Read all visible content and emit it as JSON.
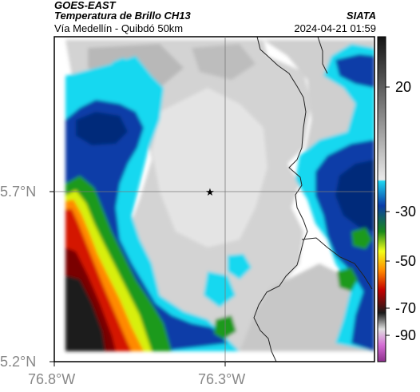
{
  "header": {
    "satellite": "GOES-EAST",
    "product": "Temperatura de Brillo CH13",
    "route": "Vía Medellín - Quibdó 50km",
    "source": "SIATA",
    "datetime": "2024-04-21 01:59"
  },
  "axes": {
    "lat_labels": [
      "5.7°N",
      "5.2°N"
    ],
    "lon_labels": [
      "76.8°W",
      "76.3°W"
    ]
  },
  "colorbar": {
    "tick_labels": [
      "20",
      "-30",
      "-50",
      "-70",
      "-90"
    ]
  },
  "colors": {
    "cold_cloud": "#0a3ca8",
    "deep_convection": "#d41200",
    "warm_surface": "#d9d9d9",
    "cyan_edge": "#17d8f0"
  },
  "markers": {
    "site_icon": "star-icon"
  }
}
